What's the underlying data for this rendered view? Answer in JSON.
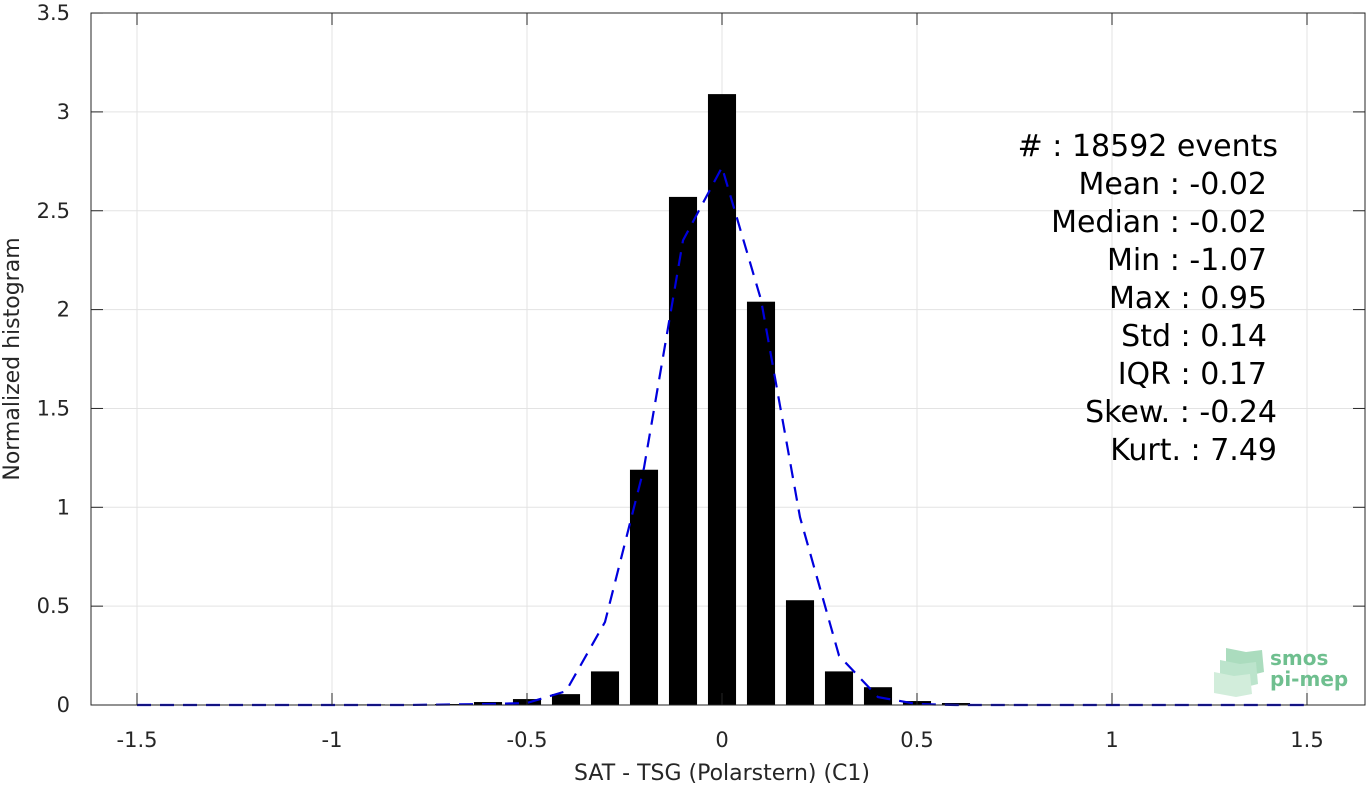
{
  "chart_data": {
    "type": "bar",
    "xlabel": "SAT - TSG (Polarstern) (C1)",
    "ylabel": "Normalized histogram",
    "xlim": [
      -1.5,
      1.5
    ],
    "ylim": [
      0,
      3.5
    ],
    "x_ticks": [
      "-1.5",
      "-1",
      "-0.5",
      "0",
      "0.5",
      "1",
      "1.5"
    ],
    "y_ticks": [
      "0",
      "0.5",
      "1",
      "1.5",
      "2",
      "2.5",
      "3",
      "3.5"
    ],
    "grid": true,
    "bar_color": "#000000",
    "bins": [
      -1.1,
      -1.0,
      -0.9,
      -0.8,
      -0.7,
      -0.6,
      -0.5,
      -0.4,
      -0.3,
      -0.2,
      -0.1,
      0.0,
      0.1,
      0.2,
      0.3,
      0.4,
      0.5,
      0.6,
      0.7,
      0.8,
      0.9
    ],
    "values": [
      0.001,
      0.002,
      0.003,
      0.003,
      0.005,
      0.015,
      0.03,
      0.055,
      0.17,
      1.19,
      2.57,
      3.09,
      2.04,
      0.53,
      0.17,
      0.09,
      0.02,
      0.01,
      0.003,
      0.002,
      0.001
    ],
    "series": [
      {
        "style": "dashed",
        "color": "#0000dd",
        "x": [
          -1.5,
          -1.2,
          -1.0,
          -0.8,
          -0.6,
          -0.5,
          -0.4,
          -0.3,
          -0.2,
          -0.1,
          0.0,
          0.1,
          0.2,
          0.3,
          0.4,
          0.5,
          0.6,
          0.8,
          1.0,
          1.2,
          1.5
        ],
        "y": [
          0.0,
          0.0,
          0.0,
          0.0,
          0.005,
          0.01,
          0.07,
          0.42,
          1.2,
          2.35,
          2.72,
          2.05,
          0.95,
          0.25,
          0.04,
          0.005,
          0.0,
          0.0,
          0.0,
          0.0,
          0.0
        ]
      }
    ],
    "stats": [
      "#  : 18592 events",
      "Mean : -0.02",
      "Median : -0.02",
      "Min : -1.07",
      "Max : 0.95",
      "Std : 0.14",
      "IQR : 0.17",
      "Skew. : -0.24",
      "Kurt. : 7.49"
    ]
  },
  "logo": {
    "line1": "smos",
    "line2": "pi-mep",
    "color": "#6fbf8f"
  }
}
